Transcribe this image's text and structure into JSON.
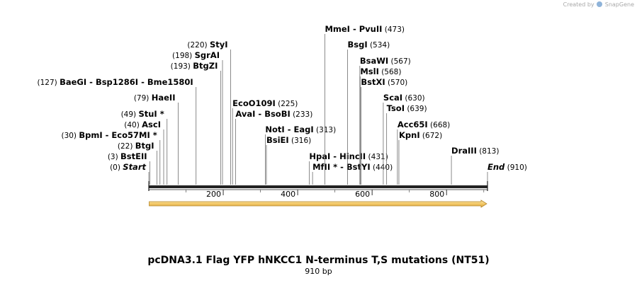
{
  "credit": {
    "prefix": "Created by",
    "brand": "SnapGene"
  },
  "title": "pcDNA3.1 Flag YFP hNKCC1 N-terminus T,S mutations (NT51)",
  "length_label": "910 bp",
  "sequence_length": 910,
  "axis_ticks": [
    "200",
    "400",
    "600",
    "800"
  ],
  "colors": {
    "feature_fill": "#f6d98a",
    "feature_stroke": "#b5862a",
    "line": "#6e6e6e"
  },
  "feature": {
    "icon": "arrow-feature-icon",
    "start": 1,
    "end": 908
  },
  "sites": [
    {
      "pos": 0,
      "count": "(0)",
      "names": [
        "Start"
      ],
      "italic": true
    },
    {
      "pos": 3,
      "count": "(3)",
      "names": [
        "BstEII"
      ]
    },
    {
      "pos": 22,
      "count": "(22)",
      "names": [
        "BtgI"
      ]
    },
    {
      "pos": 30,
      "count": "(30)",
      "names": [
        "BpmI",
        "Eco57MI *"
      ]
    },
    {
      "pos": 40,
      "count": "(40)",
      "names": [
        "AscI"
      ]
    },
    {
      "pos": 49,
      "count": "(49)",
      "names": [
        "StuI *"
      ]
    },
    {
      "pos": 79,
      "count": "(79)",
      "names": [
        "HaeII"
      ]
    },
    {
      "pos": 127,
      "count": "(127)",
      "names": [
        "BaeGI",
        "Bsp1286I",
        "Bme1580I"
      ]
    },
    {
      "pos": 193,
      "count": "(193)",
      "names": [
        "BtgZI"
      ]
    },
    {
      "pos": 198,
      "count": "(198)",
      "names": [
        "SgrAI"
      ]
    },
    {
      "pos": 220,
      "count": "(220)",
      "names": [
        "StyI"
      ]
    },
    {
      "pos": 225,
      "count": "(225)",
      "names": [
        "EcoO109I"
      ],
      "count_after": true
    },
    {
      "pos": 233,
      "count": "(233)",
      "names": [
        "AvaI",
        "BsoBI"
      ],
      "count_after": true
    },
    {
      "pos": 313,
      "count": "(313)",
      "names": [
        "NotI",
        "EagI"
      ],
      "count_after": true
    },
    {
      "pos": 316,
      "count": "(316)",
      "names": [
        "BsiEI"
      ],
      "count_after": true
    },
    {
      "pos": 431,
      "count": "(431)",
      "names": [
        "HpaI",
        "HincII"
      ],
      "count_after": true
    },
    {
      "pos": 440,
      "count": "(440)",
      "names": [
        "MfII *",
        "BstYI"
      ],
      "count_after": true
    },
    {
      "pos": 473,
      "count": "(473)",
      "names": [
        "MmeI",
        "PvuII"
      ],
      "count_after": true
    },
    {
      "pos": 534,
      "count": "(534)",
      "names": [
        "BsgI"
      ],
      "count_after": true
    },
    {
      "pos": 567,
      "count": "(567)",
      "names": [
        "BsaWI"
      ],
      "count_after": true
    },
    {
      "pos": 568,
      "count": "(568)",
      "names": [
        "MslI"
      ],
      "count_after": true
    },
    {
      "pos": 570,
      "count": "(570)",
      "names": [
        "BstXI"
      ],
      "count_after": true
    },
    {
      "pos": 630,
      "count": "(630)",
      "names": [
        "ScaI"
      ],
      "count_after": true
    },
    {
      "pos": 639,
      "count": "(639)",
      "names": [
        "TsoI"
      ],
      "count_after": true
    },
    {
      "pos": 668,
      "count": "(668)",
      "names": [
        "Acc65I"
      ],
      "count_after": true
    },
    {
      "pos": 672,
      "count": "(672)",
      "names": [
        "KpnI"
      ],
      "count_after": true
    },
    {
      "pos": 813,
      "count": "(813)",
      "names": [
        "DraIII"
      ],
      "count_after": true
    },
    {
      "pos": 910,
      "count": "(910)",
      "names": [
        "End"
      ],
      "italic": true,
      "count_after": true
    }
  ]
}
